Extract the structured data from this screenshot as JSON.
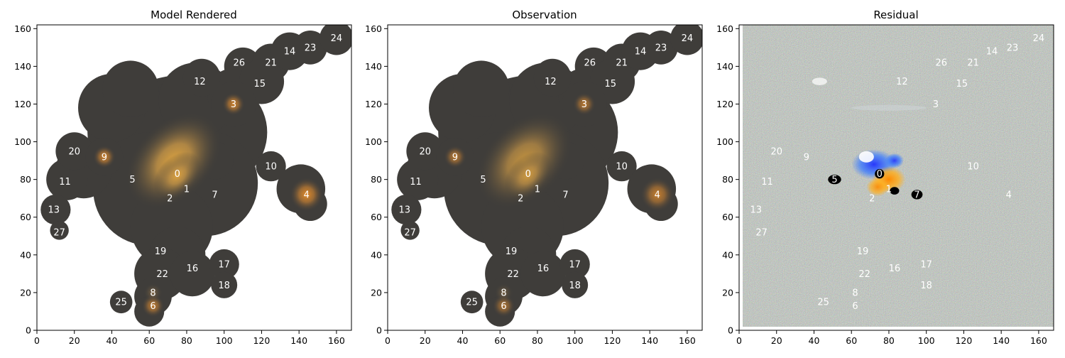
{
  "chart_data": [
    {
      "type": "image",
      "title": "Model Rendered",
      "xlim": [
        0,
        168
      ],
      "ylim": [
        0,
        162
      ],
      "xticks": [
        0,
        20,
        40,
        60,
        80,
        100,
        120,
        140,
        160
      ],
      "yticks": [
        0,
        20,
        40,
        60,
        80,
        100,
        120,
        140,
        160
      ],
      "labels": [
        {
          "text": "0",
          "x": 75,
          "y": 83
        },
        {
          "text": "1",
          "x": 80,
          "y": 75
        },
        {
          "text": "2",
          "x": 71,
          "y": 70
        },
        {
          "text": "3",
          "x": 105,
          "y": 120
        },
        {
          "text": "4",
          "x": 144,
          "y": 72
        },
        {
          "text": "5",
          "x": 51,
          "y": 80
        },
        {
          "text": "6",
          "x": 62,
          "y": 13
        },
        {
          "text": "7",
          "x": 95,
          "y": 72
        },
        {
          "text": "8",
          "x": 62,
          "y": 20
        },
        {
          "text": "9",
          "x": 36,
          "y": 92
        },
        {
          "text": "10",
          "x": 125,
          "y": 87
        },
        {
          "text": "11",
          "x": 15,
          "y": 79
        },
        {
          "text": "12",
          "x": 87,
          "y": 132
        },
        {
          "text": "13",
          "x": 9,
          "y": 64
        },
        {
          "text": "14",
          "x": 135,
          "y": 148
        },
        {
          "text": "15",
          "x": 119,
          "y": 131
        },
        {
          "text": "16",
          "x": 83,
          "y": 33
        },
        {
          "text": "17",
          "x": 100,
          "y": 35
        },
        {
          "text": "18",
          "x": 100,
          "y": 24
        },
        {
          "text": "19",
          "x": 66,
          "y": 42
        },
        {
          "text": "20",
          "x": 20,
          "y": 95
        },
        {
          "text": "21",
          "x": 125,
          "y": 142
        },
        {
          "text": "22",
          "x": 67,
          "y": 30
        },
        {
          "text": "23",
          "x": 146,
          "y": 150
        },
        {
          "text": "24",
          "x": 160,
          "y": 155
        },
        {
          "text": "25",
          "x": 45,
          "y": 15
        },
        {
          "text": "26",
          "x": 108,
          "y": 142
        },
        {
          "text": "27",
          "x": 12,
          "y": 52
        }
      ]
    },
    {
      "type": "image",
      "title": "Observation",
      "xlim": [
        0,
        168
      ],
      "ylim": [
        0,
        162
      ],
      "xticks": [
        0,
        20,
        40,
        60,
        80,
        100,
        120,
        140,
        160
      ],
      "yticks": [
        0,
        20,
        40,
        60,
        80,
        100,
        120,
        140,
        160
      ],
      "labels": [
        {
          "text": "0",
          "x": 75,
          "y": 83
        },
        {
          "text": "1",
          "x": 80,
          "y": 75
        },
        {
          "text": "2",
          "x": 71,
          "y": 70
        },
        {
          "text": "3",
          "x": 105,
          "y": 120
        },
        {
          "text": "4",
          "x": 144,
          "y": 72
        },
        {
          "text": "5",
          "x": 51,
          "y": 80
        },
        {
          "text": "6",
          "x": 62,
          "y": 13
        },
        {
          "text": "7",
          "x": 95,
          "y": 72
        },
        {
          "text": "8",
          "x": 62,
          "y": 20
        },
        {
          "text": "9",
          "x": 36,
          "y": 92
        },
        {
          "text": "10",
          "x": 125,
          "y": 87
        },
        {
          "text": "11",
          "x": 15,
          "y": 79
        },
        {
          "text": "12",
          "x": 87,
          "y": 132
        },
        {
          "text": "13",
          "x": 9,
          "y": 64
        },
        {
          "text": "14",
          "x": 135,
          "y": 148
        },
        {
          "text": "15",
          "x": 119,
          "y": 131
        },
        {
          "text": "16",
          "x": 83,
          "y": 33
        },
        {
          "text": "17",
          "x": 100,
          "y": 35
        },
        {
          "text": "18",
          "x": 100,
          "y": 24
        },
        {
          "text": "19",
          "x": 66,
          "y": 42
        },
        {
          "text": "20",
          "x": 20,
          "y": 95
        },
        {
          "text": "21",
          "x": 125,
          "y": 142
        },
        {
          "text": "22",
          "x": 67,
          "y": 30
        },
        {
          "text": "23",
          "x": 146,
          "y": 150
        },
        {
          "text": "24",
          "x": 160,
          "y": 155
        },
        {
          "text": "25",
          "x": 45,
          "y": 15
        },
        {
          "text": "26",
          "x": 108,
          "y": 142
        },
        {
          "text": "27",
          "x": 12,
          "y": 52
        }
      ]
    },
    {
      "type": "image",
      "title": "Residual",
      "xlim": [
        0,
        168
      ],
      "ylim": [
        0,
        162
      ],
      "xticks": [
        0,
        20,
        40,
        60,
        80,
        100,
        120,
        140,
        160
      ],
      "yticks": [
        0,
        20,
        40,
        60,
        80,
        100,
        120,
        140,
        160
      ],
      "labels": [
        {
          "text": "0",
          "x": 75,
          "y": 83
        },
        {
          "text": "1",
          "x": 80,
          "y": 75
        },
        {
          "text": "2",
          "x": 71,
          "y": 70
        },
        {
          "text": "3",
          "x": 105,
          "y": 120
        },
        {
          "text": "4",
          "x": 144,
          "y": 72
        },
        {
          "text": "5",
          "x": 51,
          "y": 80
        },
        {
          "text": "6",
          "x": 62,
          "y": 13
        },
        {
          "text": "7",
          "x": 95,
          "y": 72
        },
        {
          "text": "8",
          "x": 62,
          "y": 20
        },
        {
          "text": "9",
          "x": 36,
          "y": 92
        },
        {
          "text": "10",
          "x": 125,
          "y": 87
        },
        {
          "text": "11",
          "x": 15,
          "y": 79
        },
        {
          "text": "12",
          "x": 87,
          "y": 132
        },
        {
          "text": "13",
          "x": 9,
          "y": 64
        },
        {
          "text": "14",
          "x": 135,
          "y": 148
        },
        {
          "text": "15",
          "x": 119,
          "y": 131
        },
        {
          "text": "16",
          "x": 83,
          "y": 33
        },
        {
          "text": "17",
          "x": 100,
          "y": 35
        },
        {
          "text": "18",
          "x": 100,
          "y": 24
        },
        {
          "text": "19",
          "x": 66,
          "y": 42
        },
        {
          "text": "20",
          "x": 20,
          "y": 95
        },
        {
          "text": "21",
          "x": 125,
          "y": 142
        },
        {
          "text": "22",
          "x": 67,
          "y": 30
        },
        {
          "text": "23",
          "x": 146,
          "y": 150
        },
        {
          "text": "24",
          "x": 160,
          "y": 155
        },
        {
          "text": "25",
          "x": 45,
          "y": 15
        },
        {
          "text": "26",
          "x": 108,
          "y": 142
        },
        {
          "text": "27",
          "x": 12,
          "y": 52
        }
      ]
    }
  ],
  "colors": {
    "mask": "#3f3d3a",
    "galaxy_core": "#d6a24a",
    "source_glow": "#c77a2a",
    "residual_noise": "#7b8579",
    "label": "#ffffff"
  }
}
